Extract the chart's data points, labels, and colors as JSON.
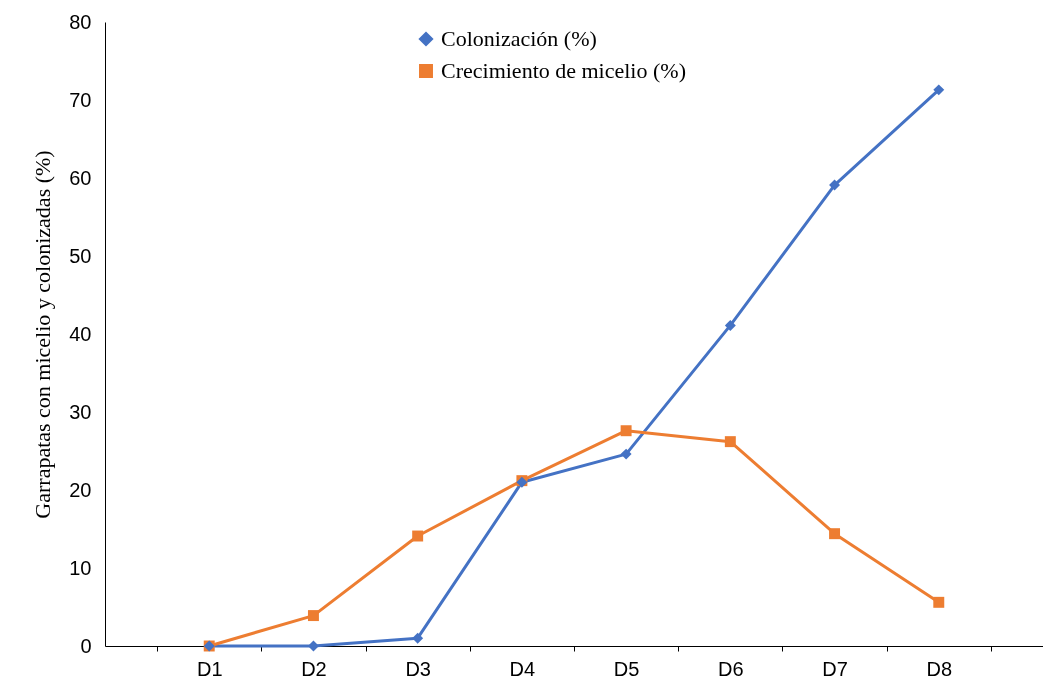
{
  "chart_data": {
    "type": "line",
    "ylabel": "Garrapatas  con micelio y colonizadas (%)",
    "categories": [
      "D1",
      "D2",
      "D3",
      "D4",
      "D5",
      "D6",
      "D7",
      "D8"
    ],
    "ylim": [
      0,
      80
    ],
    "yticks": [
      0,
      10,
      20,
      30,
      40,
      50,
      60,
      70,
      80
    ],
    "grid": false,
    "legend": "top",
    "series": [
      {
        "name": "Colonización (%)",
        "color": "#4472c4",
        "marker": "diamond",
        "values": [
          0,
          0,
          1,
          21,
          24.6,
          41.1,
          59.1,
          71.3
        ]
      },
      {
        "name": "Crecimiento de micelio (%)",
        "color": "#ed7d31",
        "marker": "square",
        "values": [
          0,
          3.9,
          14.1,
          21.2,
          27.6,
          26.2,
          14.4,
          5.6
        ]
      }
    ]
  }
}
